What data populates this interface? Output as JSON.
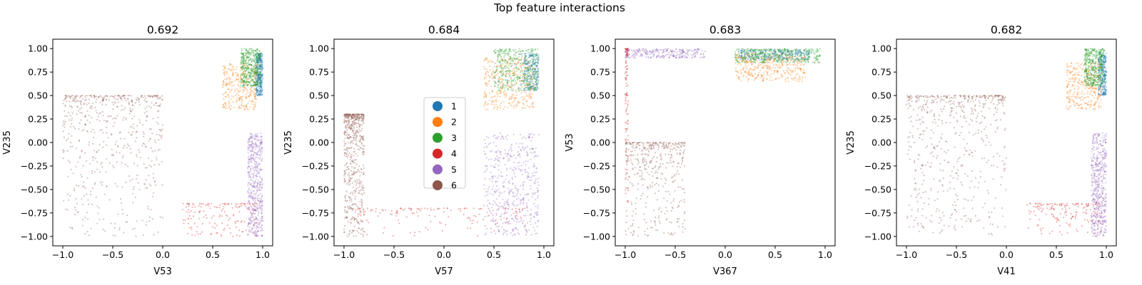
{
  "figure": {
    "suptitle": "Top feature interactions"
  },
  "colors": {
    "1": "#1f77b4",
    "2": "#ff7f0e",
    "3": "#2ca02c",
    "4": "#d62728",
    "5": "#9467bd",
    "6": "#8c564b"
  },
  "chart_data": [
    {
      "type": "scatter",
      "title": "0.692",
      "xlabel": "V53",
      "ylabel": "V235",
      "xlim": [
        -1.1,
        1.1
      ],
      "ylim": [
        -1.1,
        1.1
      ],
      "xticks": [
        -1.0,
        -0.5,
        0.0,
        0.5,
        1.0
      ],
      "yticks": [
        -1.0,
        -0.75,
        -0.5,
        -0.25,
        0.0,
        0.25,
        0.5,
        0.75,
        1.0
      ],
      "xtick_labels": [
        "−1.0",
        "−0.5",
        "0.0",
        "0.5",
        "1.0"
      ],
      "ytick_labels": [
        "−1.00",
        "−0.75",
        "−0.50",
        "−0.25",
        "0.00",
        "0.25",
        "0.50",
        "0.75",
        "1.00"
      ],
      "clusters": [
        {
          "name": "1",
          "x_range": [
            0.93,
            1.0
          ],
          "y_range": [
            0.5,
            0.95
          ],
          "n": 320
        },
        {
          "name": "2",
          "x_range": [
            0.6,
            0.95
          ],
          "y_range": [
            0.35,
            0.85
          ],
          "n": 300
        },
        {
          "name": "3",
          "x_range": [
            0.78,
            0.98
          ],
          "y_range": [
            0.6,
            1.0
          ],
          "n": 420
        },
        {
          "name": "4",
          "x_range": [
            0.2,
            0.95
          ],
          "y_range": [
            -1.0,
            -0.65
          ],
          "n": 160
        },
        {
          "name": "5",
          "x_range": [
            0.85,
            1.0
          ],
          "y_range": [
            -1.0,
            0.1
          ],
          "n": 480
        },
        {
          "name": "6",
          "x_range": [
            -1.0,
            0.0
          ],
          "y_range": [
            -1.0,
            0.5
          ],
          "n": 600
        }
      ]
    },
    {
      "type": "scatter",
      "title": "0.684",
      "xlabel": "V57",
      "ylabel": "V235",
      "xlim": [
        -1.1,
        1.1
      ],
      "ylim": [
        -1.1,
        1.1
      ],
      "xticks": [
        -1.0,
        -0.5,
        0.0,
        0.5,
        1.0
      ],
      "yticks": [
        -1.0,
        -0.75,
        -0.5,
        -0.25,
        0.0,
        0.25,
        0.5,
        0.75,
        1.0
      ],
      "xtick_labels": [
        "−1.0",
        "−0.5",
        "0.0",
        "0.5",
        "1.0"
      ],
      "ytick_labels": [
        "−1.00",
        "−0.75",
        "−0.50",
        "−0.25",
        "0.00",
        "0.25",
        "0.50",
        "0.75",
        "1.00"
      ],
      "clusters": [
        {
          "name": "1",
          "x_range": [
            0.8,
            0.95
          ],
          "y_range": [
            0.55,
            0.95
          ],
          "n": 220
        },
        {
          "name": "2",
          "x_range": [
            0.4,
            0.9
          ],
          "y_range": [
            0.35,
            0.9
          ],
          "n": 320
        },
        {
          "name": "3",
          "x_range": [
            0.5,
            0.95
          ],
          "y_range": [
            0.55,
            1.0
          ],
          "n": 420
        },
        {
          "name": "4",
          "x_range": [
            -0.9,
            0.9
          ],
          "y_range": [
            -1.0,
            -0.7
          ],
          "n": 150
        },
        {
          "name": "5",
          "x_range": [
            0.4,
            0.95
          ],
          "y_range": [
            -1.0,
            0.1
          ],
          "n": 480
        },
        {
          "name": "6",
          "x_range": [
            -1.0,
            -0.8
          ],
          "y_range": [
            -1.0,
            0.3
          ],
          "n": 560
        }
      ]
    },
    {
      "type": "scatter",
      "title": "0.683",
      "xlabel": "V367",
      "ylabel": "V53",
      "xlim": [
        -1.1,
        1.1
      ],
      "ylim": [
        -1.1,
        1.1
      ],
      "xticks": [
        -1.0,
        -0.5,
        0.0,
        0.5,
        1.0
      ],
      "yticks": [
        -1.0,
        -0.75,
        -0.5,
        -0.25,
        0.0,
        0.25,
        0.5,
        0.75,
        1.0
      ],
      "xtick_labels": [
        "−1.0",
        "−0.5",
        "0.0",
        "0.5",
        "1.0"
      ],
      "ytick_labels": [
        "−1.00",
        "−0.75",
        "−0.50",
        "−0.25",
        "0.00",
        "0.25",
        "0.50",
        "0.75",
        "1.00"
      ],
      "clusters": [
        {
          "name": "1",
          "x_range": [
            0.15,
            0.85
          ],
          "y_range": [
            0.88,
            0.99
          ],
          "n": 300
        },
        {
          "name": "2",
          "x_range": [
            0.1,
            0.8
          ],
          "y_range": [
            0.65,
            0.95
          ],
          "n": 350
        },
        {
          "name": "3",
          "x_range": [
            0.1,
            0.95
          ],
          "y_range": [
            0.85,
            1.0
          ],
          "n": 400
        },
        {
          "name": "4",
          "x_range": [
            -1.0,
            -0.97
          ],
          "y_range": [
            -0.9,
            1.0
          ],
          "n": 120
        },
        {
          "name": "5",
          "x_range": [
            -1.0,
            -0.2
          ],
          "y_range": [
            0.9,
            1.0
          ],
          "n": 260
        },
        {
          "name": "6",
          "x_range": [
            -1.0,
            -0.4
          ],
          "y_range": [
            -1.0,
            0.0
          ],
          "n": 420
        }
      ]
    },
    {
      "type": "scatter",
      "title": "0.682",
      "xlabel": "V41",
      "ylabel": "V235",
      "xlim": [
        -1.1,
        1.1
      ],
      "ylim": [
        -1.1,
        1.1
      ],
      "xticks": [
        -1.0,
        -0.5,
        0.0,
        0.5,
        1.0
      ],
      "yticks": [
        -1.0,
        -0.75,
        -0.5,
        -0.25,
        0.0,
        0.25,
        0.5,
        0.75,
        1.0
      ],
      "xtick_labels": [
        "−1.0",
        "−0.5",
        "0.0",
        "0.5",
        "1.0"
      ],
      "ytick_labels": [
        "−1.00",
        "−0.75",
        "−0.50",
        "−0.25",
        "0.00",
        "0.25",
        "0.50",
        "0.75",
        "1.00"
      ],
      "clusters": [
        {
          "name": "1",
          "x_range": [
            0.92,
            1.0
          ],
          "y_range": [
            0.5,
            0.95
          ],
          "n": 260
        },
        {
          "name": "2",
          "x_range": [
            0.6,
            0.95
          ],
          "y_range": [
            0.35,
            0.85
          ],
          "n": 300
        },
        {
          "name": "3",
          "x_range": [
            0.78,
            0.98
          ],
          "y_range": [
            0.6,
            1.0
          ],
          "n": 420
        },
        {
          "name": "4",
          "x_range": [
            0.2,
            0.95
          ],
          "y_range": [
            -1.0,
            -0.65
          ],
          "n": 160
        },
        {
          "name": "5",
          "x_range": [
            0.85,
            1.0
          ],
          "y_range": [
            -1.0,
            0.1
          ],
          "n": 480
        },
        {
          "name": "6",
          "x_range": [
            -1.0,
            0.0
          ],
          "y_range": [
            -1.0,
            0.5
          ],
          "n": 600
        }
      ]
    }
  ],
  "legend": {
    "placement": "center of second panel",
    "entries": [
      "1",
      "2",
      "3",
      "4",
      "5",
      "6"
    ]
  }
}
